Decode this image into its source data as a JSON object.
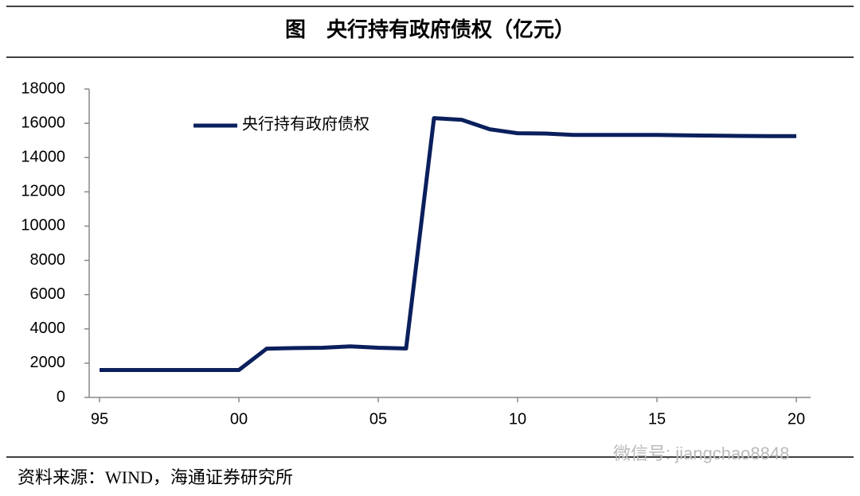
{
  "chart_data": {
    "type": "line",
    "title": "图　央行持有政府债权（亿元）",
    "categories": [
      "95",
      null,
      null,
      null,
      null,
      "00",
      null,
      null,
      null,
      null,
      "05",
      null,
      null,
      null,
      null,
      "10",
      null,
      null,
      null,
      null,
      "15",
      null,
      null,
      null,
      null,
      "20"
    ],
    "series": [
      {
        "name": "央行持有政府债权",
        "color": "#0a1f5c",
        "values": [
          1600,
          1600,
          1600,
          1600,
          1600,
          1600,
          2850,
          2880,
          2900,
          2980,
          2900,
          2860,
          16300,
          16200,
          15650,
          15420,
          15400,
          15320,
          15320,
          15320,
          15320,
          15300,
          15280,
          15260,
          15250,
          15250
        ]
      }
    ],
    "ylim": [
      0,
      18000
    ],
    "yticks": [
      0,
      2000,
      4000,
      6000,
      8000,
      10000,
      12000,
      14000,
      16000,
      18000
    ],
    "source": "资料来源：WIND，海通证券研究所",
    "watermark": "微信号: jiangchao8848"
  }
}
